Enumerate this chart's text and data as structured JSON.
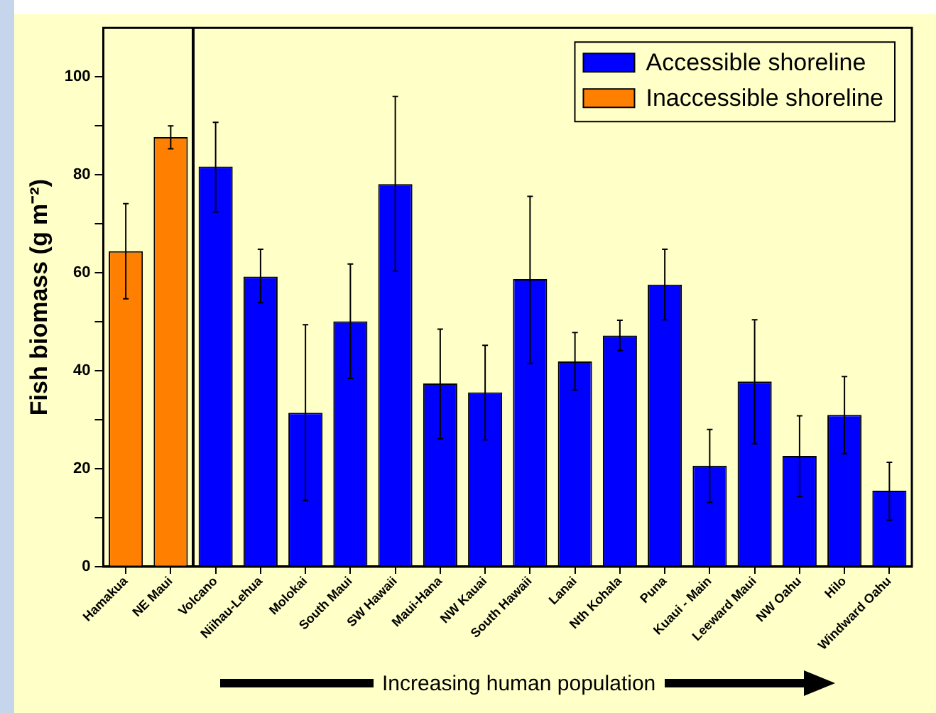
{
  "chart_data": {
    "type": "bar",
    "ylabel": "Fish biomass (g m⁻²)",
    "categories": [
      "Hamakua",
      "NE Maui",
      "Volcano",
      "Niihau-Lehua",
      "Molokai",
      "South Maui",
      "SW Hawaii",
      "Maui-Hana",
      "NW Kauai",
      "South Hawaii",
      "Lanai",
      "Nth Kohala",
      "Puna",
      "Kuaui - Main",
      "Leeward Maui",
      "NW Oahu",
      "Hilo",
      "Windward Oahu"
    ],
    "series": [
      {
        "name": "Accessible shoreline",
        "color": "#0000ff",
        "values": [
          null,
          null,
          81.7,
          59.2,
          31.4,
          50.1,
          78.1,
          37.4,
          35.6,
          58.7,
          41.9,
          47.2,
          57.6,
          20.6,
          37.8,
          22.6,
          31.0,
          15.5
        ],
        "errors": [
          null,
          null,
          [
            72.4,
            90.7
          ],
          [
            53.9,
            64.8
          ],
          [
            13.5,
            49.4
          ],
          [
            38.4,
            61.8
          ],
          [
            60.3,
            96.0
          ],
          [
            26.1,
            48.5
          ],
          [
            25.9,
            45.2
          ],
          [
            41.5,
            75.6
          ],
          [
            36.1,
            47.8
          ],
          [
            44.1,
            50.3
          ],
          [
            50.4,
            64.8
          ],
          [
            13.1,
            28.0
          ],
          [
            25.1,
            50.4
          ],
          [
            14.3,
            30.8
          ],
          [
            23.1,
            38.8
          ],
          [
            9.5,
            21.3
          ]
        ]
      },
      {
        "name": "Inaccessible shoreline",
        "color": "#ff8000",
        "values": [
          64.4,
          87.7,
          null,
          null,
          null,
          null,
          null,
          null,
          null,
          null,
          null,
          null,
          null,
          null,
          null,
          null,
          null,
          null
        ],
        "errors": [
          [
            54.7,
            74.1
          ],
          [
            85.3,
            90.0
          ],
          null,
          null,
          null,
          null,
          null,
          null,
          null,
          null,
          null,
          null,
          null,
          null,
          null,
          null,
          null,
          null
        ]
      }
    ],
    "ylim": [
      0,
      110
    ],
    "yticks": [
      0,
      {
        "value": 10,
        "label": null
      },
      20,
      {
        "value": 30,
        "label": null
      },
      40,
      {
        "value": 50,
        "label": null
      },
      60,
      {
        "value": 70,
        "label": null
      },
      80,
      {
        "value": 90,
        "label": null
      },
      100
    ],
    "grid": false,
    "legend": "top right",
    "annotations": [
      "Increasing human population"
    ]
  }
}
